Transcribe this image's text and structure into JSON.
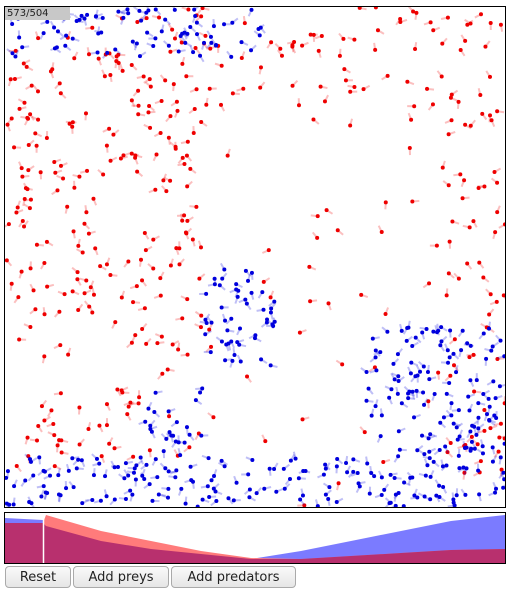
{
  "counter": "573/504",
  "buttons": [
    "Reset",
    "Add preys",
    "Add predators"
  ]
}
